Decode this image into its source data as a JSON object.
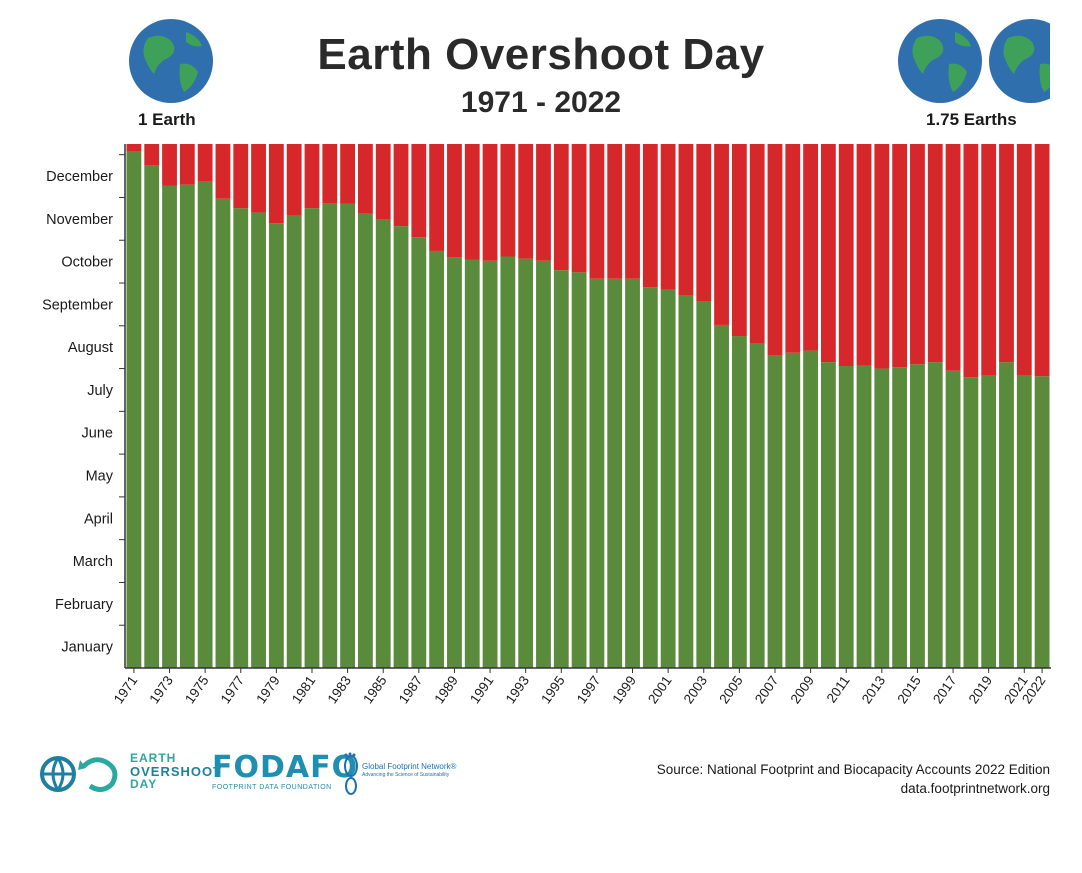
{
  "title": "Earth Overshoot Day",
  "subtitle": "1971 - 2022",
  "left_label": "1 Earth",
  "right_label": "1.75 Earths",
  "source_line1": "Source: National Footprint and Biocapacity Accounts 2022 Edition",
  "source_line2": "data.footprintnetwork.org",
  "logos": {
    "eod_line1": "EARTH",
    "eod_line2": "OVERSHOOT",
    "eod_line3": "DAY",
    "fodafo": "FODAFO",
    "fodafo_sub": "FOOTPRINT DATA FOUNDATION",
    "gfn": "Global Footprint Network®",
    "gfn_sub": "Advancing the Science of Sustainability"
  },
  "colors": {
    "green": "#5a8a3c",
    "red": "#d6282b",
    "globe_ocean": "#2f6fae",
    "globe_land": "#3fa05a"
  },
  "icons": [
    "globe-icon",
    "earth-overshoot-day-logo",
    "fodafo-logo",
    "global-footprint-network-logo"
  ],
  "chart_data": {
    "type": "bar",
    "stacked": true,
    "categories": [
      "1971",
      "1972",
      "1973",
      "1974",
      "1975",
      "1976",
      "1977",
      "1978",
      "1979",
      "1980",
      "1981",
      "1982",
      "1983",
      "1984",
      "1985",
      "1986",
      "1987",
      "1988",
      "1989",
      "1990",
      "1991",
      "1992",
      "1993",
      "1994",
      "1995",
      "1996",
      "1997",
      "1998",
      "1999",
      "2000",
      "2001",
      "2002",
      "2003",
      "2004",
      "2005",
      "2006",
      "2007",
      "2008",
      "2009",
      "2010",
      "2011",
      "2012",
      "2013",
      "2014",
      "2015",
      "2016",
      "2017",
      "2018",
      "2019",
      "2020",
      "2021",
      "2022"
    ],
    "x_tick_labels": [
      "1971",
      "1973",
      "1975",
      "1977",
      "1979",
      "1981",
      "1983",
      "1985",
      "1987",
      "1989",
      "1991",
      "1993",
      "1995",
      "1997",
      "1999",
      "2001",
      "2003",
      "2005",
      "2007",
      "2009",
      "2011",
      "2013",
      "2015",
      "2017",
      "2019",
      "2021",
      "2022"
    ],
    "y_tick_labels": [
      "January",
      "February",
      "March",
      "April",
      "May",
      "June",
      "July",
      "August",
      "September",
      "October",
      "November",
      "December"
    ],
    "ylim": [
      0,
      12.25
    ],
    "series": [
      {
        "name": "",
        "color": "#5a8a3c",
        "values": [
          12.07,
          11.75,
          11.27,
          11.3,
          11.37,
          10.97,
          10.75,
          10.65,
          10.4,
          10.58,
          10.75,
          10.87,
          10.85,
          10.62,
          10.48,
          10.33,
          10.07,
          9.75,
          9.6,
          9.55,
          9.52,
          9.62,
          9.57,
          9.52,
          9.3,
          9.25,
          9.1,
          9.1,
          9.1,
          8.9,
          8.85,
          8.72,
          8.57,
          8.02,
          7.76,
          7.58,
          7.3,
          7.37,
          7.42,
          7.15,
          7.06,
          7.07,
          7.0,
          7.03,
          7.1,
          7.15,
          6.95,
          6.8,
          6.85,
          7.15,
          6.85,
          6.82
        ]
      },
      {
        "name": "",
        "color": "#d6282b",
        "values": [
          0.18,
          0.5,
          0.98,
          0.95,
          0.88,
          1.28,
          1.5,
          1.6,
          1.85,
          1.67,
          1.5,
          1.38,
          1.4,
          1.63,
          1.77,
          1.92,
          2.18,
          2.5,
          2.65,
          2.7,
          2.73,
          2.63,
          2.68,
          2.73,
          2.95,
          3.0,
          3.15,
          3.15,
          3.15,
          3.35,
          3.4,
          3.53,
          3.68,
          4.23,
          4.49,
          4.67,
          4.95,
          4.88,
          4.83,
          5.1,
          5.19,
          5.18,
          5.25,
          5.22,
          5.15,
          5.1,
          5.3,
          5.45,
          5.4,
          5.1,
          5.4,
          5.43
        ]
      }
    ]
  }
}
